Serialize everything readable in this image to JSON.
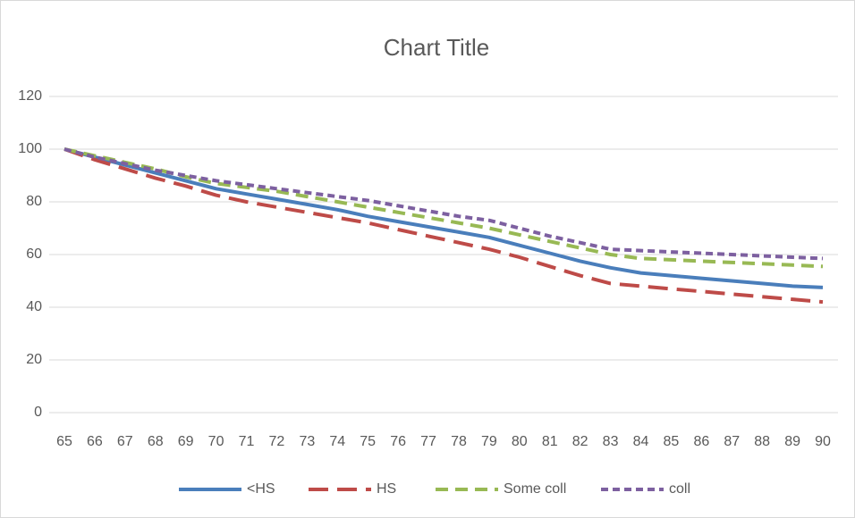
{
  "chart_data": {
    "type": "line",
    "title": "Chart Title",
    "categories": [
      "65",
      "66",
      "67",
      "68",
      "69",
      "70",
      "71",
      "72",
      "73",
      "74",
      "75",
      "76",
      "77",
      "78",
      "79",
      "80",
      "81",
      "82",
      "83",
      "84",
      "85",
      "86",
      "87",
      "88",
      "89",
      "90"
    ],
    "series": [
      {
        "name": "<HS",
        "color": "#4a7ebb",
        "style": "solid",
        "values": [
          100,
          97,
          94,
          91,
          88,
          85,
          83,
          81,
          79,
          77,
          74.5,
          72.5,
          70.5,
          68.5,
          66.5,
          63.5,
          60.5,
          57.5,
          55,
          53,
          52,
          51,
          50,
          49,
          48,
          47.5
        ]
      },
      {
        "name": "HS",
        "color": "#be4b48",
        "style": "long-dash",
        "values": [
          100,
          96,
          92.5,
          89,
          86,
          82.5,
          80,
          78,
          76,
          74,
          72,
          69.5,
          67,
          64.5,
          62,
          59,
          55.5,
          52,
          49,
          48,
          47,
          46,
          45,
          44,
          43,
          42
        ]
      },
      {
        "name": "Some coll",
        "color": "#98b954",
        "style": "dash",
        "values": [
          100,
          97.5,
          95,
          92.5,
          89.5,
          87,
          85.5,
          84,
          82,
          80,
          78,
          76,
          74,
          72,
          70,
          67.5,
          65,
          62.5,
          60,
          58.5,
          58,
          57.5,
          57,
          56.5,
          56,
          55.5
        ]
      },
      {
        "name": "coll",
        "color": "#7d60a0",
        "style": "short-dash",
        "values": [
          100,
          97,
          94.5,
          92,
          90,
          88,
          86.5,
          85,
          83.5,
          82,
          80.5,
          78.5,
          76.5,
          74.5,
          73,
          70,
          67,
          64.5,
          62,
          61.5,
          61,
          60.5,
          60,
          59.5,
          59,
          58.5
        ]
      }
    ],
    "ylim": [
      0,
      120
    ],
    "yticks": [
      0,
      20,
      40,
      60,
      80,
      100,
      120
    ],
    "grid": true,
    "legend": "bottom"
  }
}
